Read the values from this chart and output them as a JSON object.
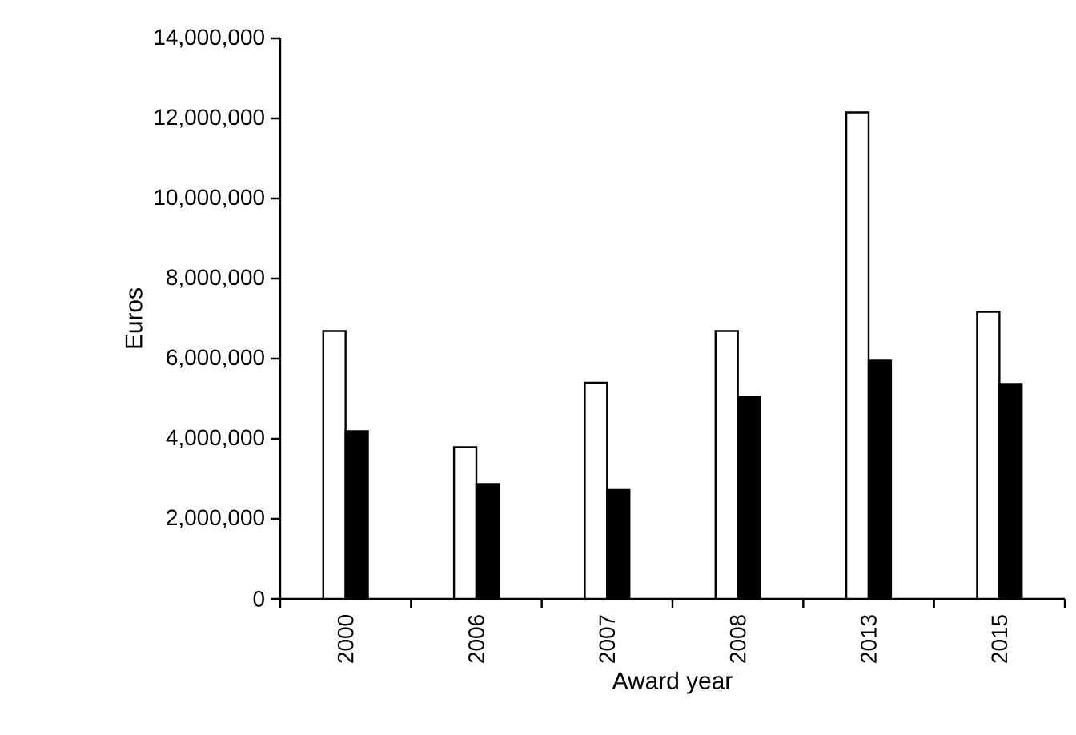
{
  "chart_data": {
    "type": "bar",
    "xlabel": "Award year",
    "ylabel": "Euros",
    "categories": [
      "2000",
      "2006",
      "2007",
      "2008",
      "2013",
      "2015"
    ],
    "series": [
      {
        "color": "#ffffff",
        "values": [
          6690000,
          3790000,
          5400000,
          6690000,
          12150000,
          7170000
        ]
      },
      {
        "color": "#000000",
        "values": [
          4190000,
          2870000,
          2720000,
          5050000,
          5950000,
          5370000
        ]
      }
    ],
    "ylim": [
      0,
      14000000
    ],
    "yticks": [
      {
        "value": 0,
        "label": "0"
      },
      {
        "value": 2000000,
        "label": "2,000,000"
      },
      {
        "value": 4000000,
        "label": "4,000,000"
      },
      {
        "value": 6000000,
        "label": "6,000,000"
      },
      {
        "value": 8000000,
        "label": "8,000,000"
      },
      {
        "value": 10000000,
        "label": "10,000,000"
      },
      {
        "value": 12000000,
        "label": "12,000,000"
      },
      {
        "value": 14000000,
        "label": "14,000,000"
      }
    ]
  }
}
